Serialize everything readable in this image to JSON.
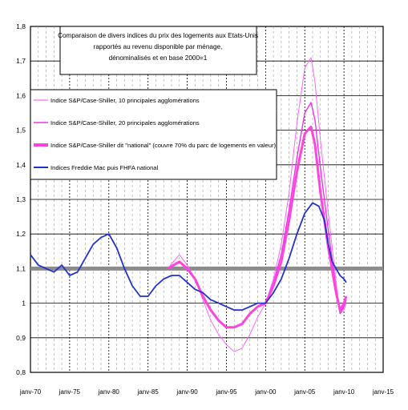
{
  "chart_data": {
    "type": "line",
    "title_lines": [
      "Comparaison de divers indices du prix des logements aux Etats-Unis",
      "rapportés au revenu disponible par ménage,",
      "dénominalisés et en base 2000=1"
    ],
    "xlabel": "",
    "ylabel": "",
    "x_range": [
      1970,
      2015
    ],
    "ylim": [
      0.8,
      1.8
    ],
    "grid": true,
    "reference_line": 1.1,
    "legend_position": "top-left",
    "x_ticks": [
      {
        "value": 1970,
        "label": "janv-70"
      },
      {
        "value": 1975,
        "label": "janv-75"
      },
      {
        "value": 1980,
        "label": "janv-80"
      },
      {
        "value": 1985,
        "label": "janv-85"
      },
      {
        "value": 1990,
        "label": "janv-90"
      },
      {
        "value": 1995,
        "label": "janv-95"
      },
      {
        "value": 2000,
        "label": "janv-00"
      },
      {
        "value": 2005,
        "label": "janv-05"
      },
      {
        "value": 2010,
        "label": "janv-10"
      },
      {
        "value": 2015,
        "label": "janv-15"
      }
    ],
    "y_ticks": [
      {
        "value": 0.8,
        "label": "0,8"
      },
      {
        "value": 0.9,
        "label": "0,9"
      },
      {
        "value": 1.0,
        "label": "1"
      },
      {
        "value": 1.1,
        "label": "1,1"
      },
      {
        "value": 1.2,
        "label": "1,2"
      },
      {
        "value": 1.3,
        "label": "1,3"
      },
      {
        "value": 1.4,
        "label": "1,4"
      },
      {
        "value": 1.5,
        "label": "1,5"
      },
      {
        "value": 1.6,
        "label": "1,6"
      },
      {
        "value": 1.7,
        "label": "1,7"
      },
      {
        "value": 1.8,
        "label": "1,8"
      }
    ],
    "series": [
      {
        "name": "Indice S&P/Case-Shiller, 10 principales agglomérations",
        "color": "#ff66ff",
        "points": [
          [
            1987.5,
            1.1
          ],
          [
            1989,
            1.14
          ],
          [
            1990,
            1.11
          ],
          [
            1991,
            1.07
          ],
          [
            1992,
            1.01
          ],
          [
            1993,
            0.95
          ],
          [
            1994,
            0.91
          ],
          [
            1995,
            0.88
          ],
          [
            1996,
            0.86
          ],
          [
            1997,
            0.87
          ],
          [
            1998,
            0.91
          ],
          [
            1999,
            0.96
          ],
          [
            2000,
            1.0
          ],
          [
            2001,
            1.07
          ],
          [
            2002,
            1.17
          ],
          [
            2003,
            1.32
          ],
          [
            2004,
            1.52
          ],
          [
            2005,
            1.68
          ],
          [
            2005.8,
            1.71
          ],
          [
            2006.3,
            1.64
          ],
          [
            2007,
            1.47
          ],
          [
            2008,
            1.26
          ],
          [
            2009,
            1.06
          ],
          [
            2009.5,
            0.97
          ],
          [
            2010,
            0.98
          ],
          [
            2010.3,
            1.0
          ]
        ]
      },
      {
        "name": "Indice S&P/Case-Shiller, 20 principales agglomérations",
        "color": "#ee33ee",
        "points": [
          [
            2000,
            1.0
          ],
          [
            2001,
            1.06
          ],
          [
            2002,
            1.14
          ],
          [
            2003,
            1.27
          ],
          [
            2004,
            1.42
          ],
          [
            2005,
            1.55
          ],
          [
            2005.8,
            1.58
          ],
          [
            2006.3,
            1.53
          ],
          [
            2007,
            1.39
          ],
          [
            2008,
            1.21
          ],
          [
            2009,
            1.04
          ],
          [
            2009.5,
            0.97
          ],
          [
            2010,
            0.99
          ],
          [
            2010.3,
            1.01
          ]
        ]
      },
      {
        "name": "Indice S&P/Case-Shiller dit \"national\" (couvre 70% du parc de logements en valeur)",
        "color": "#ff44dd",
        "points": [
          [
            1987.5,
            1.1
          ],
          [
            1989,
            1.12
          ],
          [
            1990,
            1.1
          ],
          [
            1991,
            1.07
          ],
          [
            1992,
            1.02
          ],
          [
            1993,
            0.98
          ],
          [
            1994,
            0.95
          ],
          [
            1995,
            0.93
          ],
          [
            1996,
            0.93
          ],
          [
            1997,
            0.94
          ],
          [
            1998,
            0.97
          ],
          [
            1999,
            0.99
          ],
          [
            2000,
            1.0
          ],
          [
            2001,
            1.05
          ],
          [
            2002,
            1.12
          ],
          [
            2003,
            1.24
          ],
          [
            2004,
            1.38
          ],
          [
            2005,
            1.49
          ],
          [
            2005.8,
            1.51
          ],
          [
            2006.3,
            1.46
          ],
          [
            2007,
            1.32
          ],
          [
            2008,
            1.16
          ],
          [
            2009,
            1.03
          ],
          [
            2009.5,
            0.98
          ],
          [
            2010,
            1.0
          ],
          [
            2010.3,
            1.02
          ]
        ]
      },
      {
        "name": "Indices Freddie Mac puis FHFA national",
        "color": "#2233cc",
        "points": [
          [
            1970,
            1.14
          ],
          [
            1971,
            1.11
          ],
          [
            1972,
            1.1
          ],
          [
            1973,
            1.09
          ],
          [
            1974,
            1.11
          ],
          [
            1975,
            1.08
          ],
          [
            1976,
            1.09
          ],
          [
            1977,
            1.13
          ],
          [
            1978,
            1.17
          ],
          [
            1979,
            1.19
          ],
          [
            1980,
            1.2
          ],
          [
            1981,
            1.16
          ],
          [
            1982,
            1.1
          ],
          [
            1983,
            1.05
          ],
          [
            1984,
            1.02
          ],
          [
            1985,
            1.02
          ],
          [
            1986,
            1.05
          ],
          [
            1987,
            1.07
          ],
          [
            1988,
            1.08
          ],
          [
            1989,
            1.08
          ],
          [
            1990,
            1.06
          ],
          [
            1991,
            1.04
          ],
          [
            1992,
            1.03
          ],
          [
            1993,
            1.01
          ],
          [
            1994,
            1.0
          ],
          [
            1995,
            0.99
          ],
          [
            1996,
            0.98
          ],
          [
            1997,
            0.98
          ],
          [
            1998,
            0.99
          ],
          [
            1999,
            1.0
          ],
          [
            2000,
            1.0
          ],
          [
            2001,
            1.03
          ],
          [
            2002,
            1.07
          ],
          [
            2003,
            1.13
          ],
          [
            2004,
            1.2
          ],
          [
            2005,
            1.26
          ],
          [
            2006,
            1.29
          ],
          [
            2006.8,
            1.28
          ],
          [
            2007.5,
            1.24
          ],
          [
            2008,
            1.17
          ],
          [
            2008.5,
            1.12
          ],
          [
            2009,
            1.1
          ],
          [
            2009.5,
            1.08
          ],
          [
            2010,
            1.07
          ],
          [
            2010.3,
            1.06
          ]
        ]
      }
    ]
  }
}
